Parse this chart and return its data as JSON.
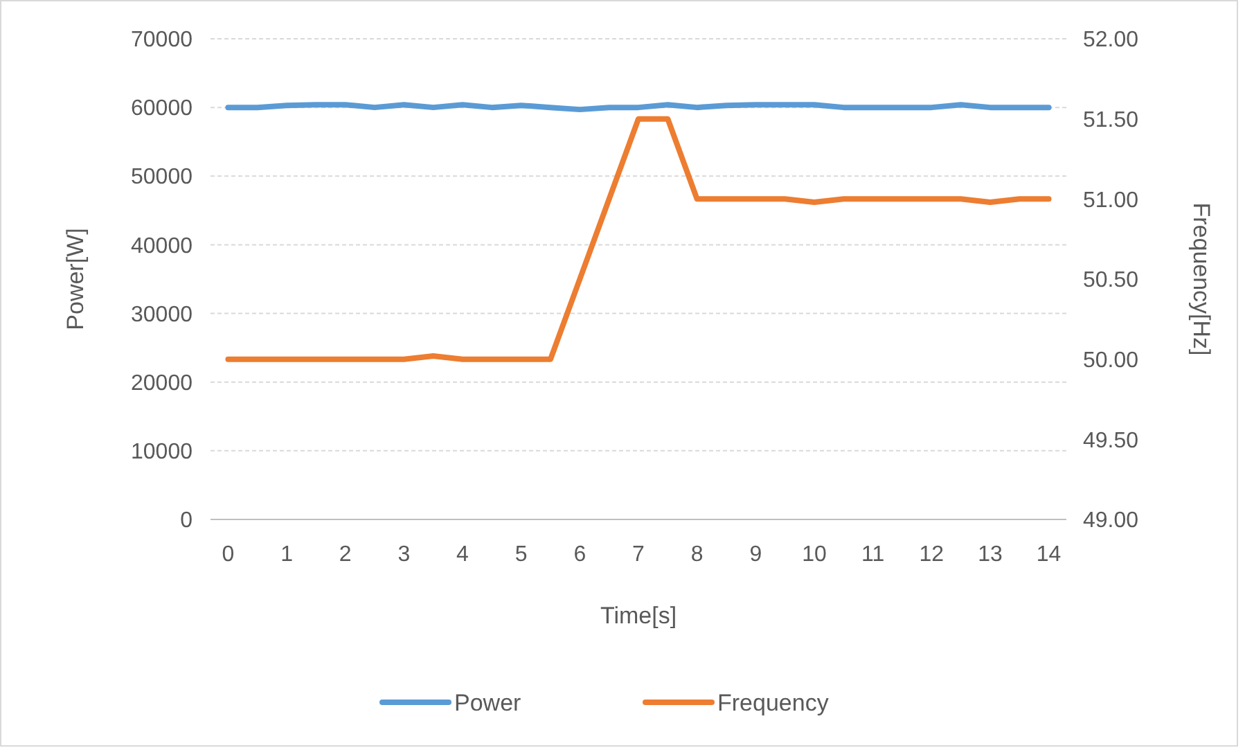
{
  "chart_data": {
    "type": "line",
    "xlabel": "Time[s]",
    "ylabel": "Power[W]",
    "y2label": "Frequency[Hz]",
    "x": [
      0,
      0.5,
      1,
      1.5,
      2,
      2.5,
      3,
      3.5,
      4,
      4.5,
      5,
      5.5,
      6,
      6.5,
      7,
      7.5,
      8,
      8.5,
      9,
      9.5,
      10,
      10.5,
      11,
      11.5,
      12,
      12.5,
      13,
      13.5,
      14
    ],
    "series": [
      {
        "name": "Power",
        "color": "#5b9bd5",
        "values": [
          60000,
          60000,
          60300,
          60400,
          60400,
          60000,
          60400,
          60000,
          60400,
          60000,
          60300,
          60000,
          59700,
          60000,
          60000,
          60400,
          60000,
          60300,
          60400,
          60400,
          60400,
          60000,
          60000,
          60000,
          60000,
          60400,
          60000,
          60000,
          60000
        ]
      },
      {
        "name": "Frequency",
        "color": "#ed7d31",
        "axis": "y2",
        "values": [
          50.0,
          50.0,
          50.0,
          50.0,
          50.0,
          50.0,
          50.0,
          50.02,
          50.0,
          50.0,
          50.0,
          50.0,
          50.5,
          51.0,
          51.5,
          51.5,
          51.0,
          51.0,
          51.0,
          51.0,
          50.98,
          51.0,
          51.0,
          51.0,
          51.0,
          51.0,
          50.98,
          51.0,
          51.0
        ]
      }
    ],
    "xlim": [
      -0.3,
      14.3
    ],
    "xticks": [
      0,
      1,
      2,
      3,
      4,
      5,
      6,
      7,
      8,
      9,
      10,
      11,
      12,
      13,
      14
    ],
    "ylim": [
      0,
      70000
    ],
    "yticks": [
      0,
      10000,
      20000,
      30000,
      40000,
      50000,
      60000,
      70000
    ],
    "y2lim": [
      49,
      52
    ],
    "y2ticks": [
      {
        "value": 49,
        "label": "49.00"
      },
      {
        "value": 49.5,
        "label": "49.50"
      },
      {
        "value": 50,
        "label": "50.00"
      },
      {
        "value": 50.5,
        "label": "50.50"
      },
      {
        "value": 51,
        "label": "51.00"
      },
      {
        "value": 51.5,
        "label": "51.50"
      },
      {
        "value": 52,
        "label": "52.00"
      }
    ],
    "grid": "y",
    "legend": "bottom",
    "marker": "none",
    "line_style": "solid"
  }
}
